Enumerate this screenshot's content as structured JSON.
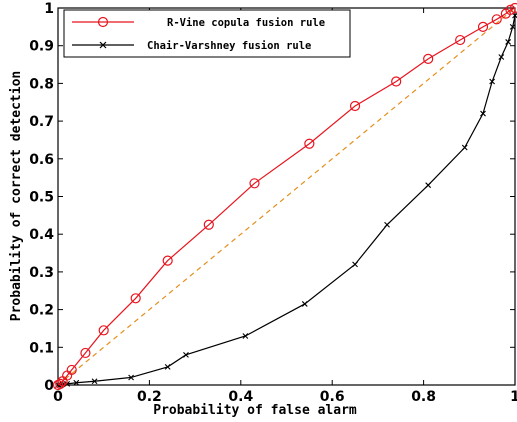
{
  "chart_data": {
    "type": "line",
    "xlabel": "Probability of false alarm",
    "ylabel": "Probability of correct detection",
    "xlim": [
      0,
      1
    ],
    "ylim": [
      0,
      1
    ],
    "x_ticks": [
      "0",
      "0.2",
      "0.4",
      "0.6",
      "0.8",
      "1"
    ],
    "y_ticks": [
      "0",
      "0.1",
      "0.2",
      "0.3",
      "0.4",
      "0.5",
      "0.6",
      "0.7",
      "0.8",
      "0.9",
      "1"
    ],
    "grid": false,
    "legend_position": "top-left",
    "series": [
      {
        "name": "R-Vine copula fusion rule",
        "color": "#e8141e",
        "marker": "circle",
        "x": [
          0,
          0.005,
          0.01,
          0.02,
          0.03,
          0.06,
          0.1,
          0.17,
          0.24,
          0.33,
          0.43,
          0.55,
          0.65,
          0.74,
          0.81,
          0.88,
          0.93,
          0.96,
          0.98,
          0.99,
          1.0
        ],
        "y": [
          0,
          0.003,
          0.01,
          0.025,
          0.04,
          0.085,
          0.145,
          0.23,
          0.33,
          0.425,
          0.535,
          0.64,
          0.74,
          0.805,
          0.865,
          0.915,
          0.95,
          0.97,
          0.985,
          0.995,
          1.0
        ]
      },
      {
        "name": "Chair-Varshney fusion rule",
        "color": "#000000",
        "marker": "x",
        "x": [
          0,
          0.005,
          0.01,
          0.02,
          0.04,
          0.08,
          0.16,
          0.24,
          0.28,
          0.41,
          0.54,
          0.65,
          0.72,
          0.81,
          0.89,
          0.93,
          0.95,
          0.97,
          0.985,
          0.995,
          1.0
        ],
        "y": [
          0,
          0.001,
          0.002,
          0.003,
          0.006,
          0.01,
          0.02,
          0.048,
          0.08,
          0.13,
          0.215,
          0.32,
          0.425,
          0.53,
          0.63,
          0.72,
          0.805,
          0.87,
          0.91,
          0.95,
          0.98
        ]
      },
      {
        "name": "",
        "color": "#e58f1e",
        "style": "dashed",
        "x": [
          0,
          1
        ],
        "y": [
          0,
          1
        ]
      }
    ]
  }
}
